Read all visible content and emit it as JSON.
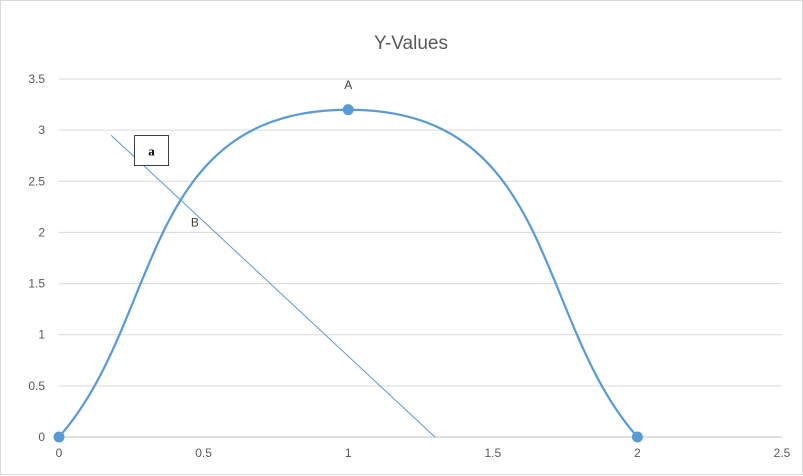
{
  "chart_data": {
    "type": "scatter",
    "title": "Y-Values",
    "xlabel": "",
    "ylabel": "",
    "xlim": [
      0,
      2.5
    ],
    "ylim": [
      0,
      3.5
    ],
    "x_ticks": [
      "0",
      "0.5",
      "1",
      "1.5",
      "2",
      "2.5"
    ],
    "y_ticks": [
      "0",
      "0.5",
      "1",
      "1.5",
      "2",
      "2.5",
      "3",
      "3.5"
    ],
    "grid": "horizontal",
    "legend": "none",
    "series": [
      {
        "type": "smooth-line-with-markers",
        "color": "#5b9bd5",
        "x": [
          0,
          1,
          2
        ],
        "y": [
          0,
          3.2,
          0
        ]
      }
    ],
    "line_segment": {
      "color": "#5b9bd5",
      "x": [
        0.18,
        1.3
      ],
      "y": [
        2.95,
        0
      ]
    },
    "annotations": [
      {
        "text": "A",
        "x": 1.0,
        "y": 3.4
      },
      {
        "text": "B",
        "x": 0.47,
        "y": 2.06
      }
    ],
    "textbox": {
      "text": "a",
      "x": 0.32,
      "y": 2.8
    }
  }
}
